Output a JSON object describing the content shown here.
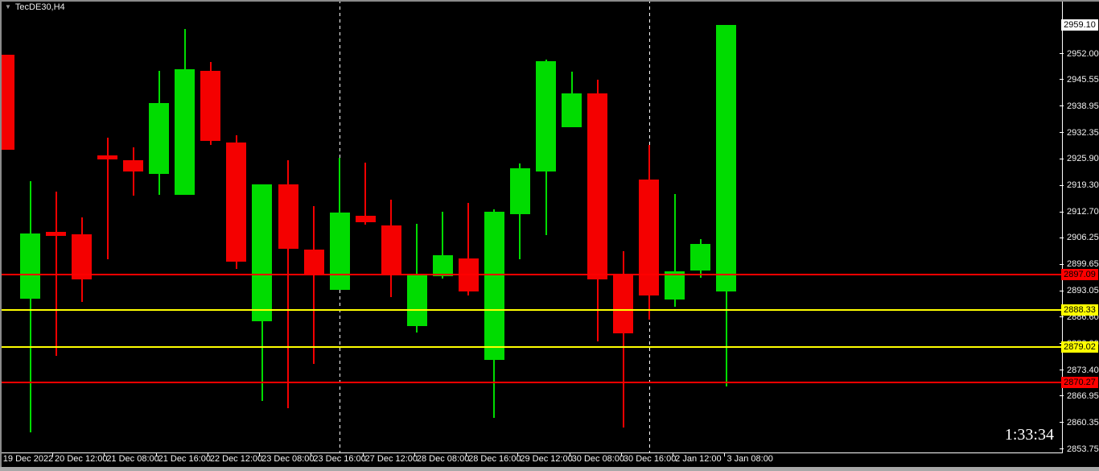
{
  "header": {
    "symbol_timeframe": "TecDE30,H4",
    "dropdown_icon": "triangle-down"
  },
  "clock_overlay": "1:33:34",
  "colors": {
    "background": "#000000",
    "bull_candle": "#00dc00",
    "bear_candle": "#f40000",
    "level_red": "#ff0000",
    "level_yellow": "#ffff00",
    "separator": "#ffffff",
    "axis_text": "#f2f2f2",
    "current_price_bg": "#ffffff",
    "label_text_on_badge": "#000000"
  },
  "chart_data": {
    "type": "candlestick",
    "title": "TecDE30,H4",
    "symbol": "TecDE30",
    "timeframe": "H4",
    "current_price_label": "2959.10",
    "current_price": 2959.1,
    "ylim": [
      2852.7,
      2965.3
    ],
    "grid": false,
    "y_axis_ticks": [
      "2952.00",
      "2945.55",
      "2938.95",
      "2932.35",
      "2925.90",
      "2919.30",
      "2912.70",
      "2906.25",
      "2899.65",
      "2893.05",
      "2886.60",
      "2880.00",
      "2873.40",
      "2866.95",
      "2860.35",
      "2853.75"
    ],
    "x_axis_labels": [
      "19 Dec 2022",
      "20 Dec 12:00",
      "21 Dec 08:00",
      "21 Dec 16:00",
      "22 Dec 12:00",
      "23 Dec 08:00",
      "23 Dec 16:00",
      "27 Dec 12:00",
      "28 Dec 08:00",
      "28 Dec 16:00",
      "29 Dec 12:00",
      "30 Dec 08:00",
      "30 Dec 16:00",
      "2 Jan 12:00",
      "3 Jan 08:00"
    ],
    "hlines": [
      {
        "price": 2897.09,
        "label": "2897.09",
        "color": "red"
      },
      {
        "price": 2888.33,
        "label": "2888.33",
        "color": "yellow"
      },
      {
        "price": 2879.02,
        "label": "2879.02",
        "color": "yellow"
      },
      {
        "price": 2870.27,
        "label": "2870.27",
        "color": "red"
      }
    ],
    "separators": {
      "candle_indices": [
        13,
        25
      ]
    },
    "candle_columns": [
      "open",
      "high",
      "low",
      "close"
    ],
    "candles": [
      [
        2951.7,
        2951.7,
        2928.1,
        2928.1
      ],
      [
        2891.1,
        2920.3,
        2857.9,
        2907.3
      ],
      [
        2907.7,
        2917.7,
        2876.9,
        2906.7
      ],
      [
        2907.1,
        2911.3,
        2890.3,
        2895.9
      ],
      [
        2926.7,
        2931.1,
        2900.9,
        2925.7
      ],
      [
        2925.5,
        2928.7,
        2916.7,
        2922.7
      ],
      [
        2922.1,
        2947.7,
        2916.9,
        2939.7
      ],
      [
        2916.9,
        2958.1,
        2916.9,
        2948.1
      ],
      [
        2947.7,
        2949.9,
        2929.3,
        2930.3
      ],
      [
        2929.9,
        2931.7,
        2898.5,
        2900.3
      ],
      [
        2885.5,
        2919.5,
        2865.7,
        2919.5
      ],
      [
        2919.5,
        2925.5,
        2863.9,
        2903.5
      ],
      [
        2903.3,
        2914.1,
        2874.9,
        2896.9
      ],
      [
        2893.3,
        2926.1,
        2893.3,
        2912.5
      ],
      [
        2911.7,
        2924.9,
        2909.5,
        2910.1
      ],
      [
        2909.3,
        2915.7,
        2891.5,
        2896.9
      ],
      [
        2884.3,
        2909.7,
        2882.7,
        2897.1
      ],
      [
        2896.7,
        2912.7,
        2896.1,
        2901.9
      ],
      [
        2901.1,
        2914.9,
        2891.9,
        2892.9
      ],
      [
        2875.9,
        2913.3,
        2861.5,
        2912.7
      ],
      [
        2912.1,
        2924.7,
        2900.9,
        2923.5
      ],
      [
        2922.7,
        2950.5,
        2906.9,
        2950.1
      ],
      [
        2933.7,
        2947.5,
        2933.7,
        2942.1
      ],
      [
        2942.1,
        2945.5,
        2880.5,
        2895.9
      ],
      [
        2896.9,
        2902.9,
        2859.1,
        2882.5
      ],
      [
        2920.7,
        2929.3,
        2885.9,
        2891.9
      ],
      [
        2890.9,
        2917.1,
        2889.1,
        2897.9
      ],
      [
        2898.1,
        2905.9,
        2896.3,
        2904.7
      ],
      [
        2892.9,
        2959.1,
        2869.3,
        2959.1
      ]
    ]
  }
}
